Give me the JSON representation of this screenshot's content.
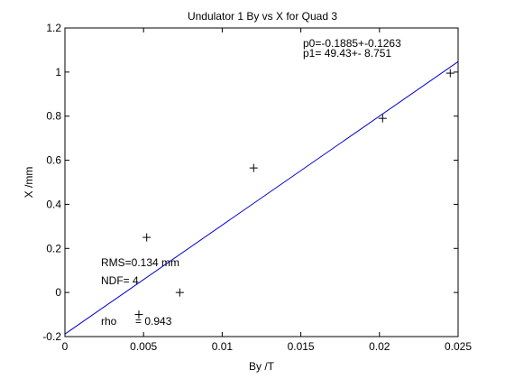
{
  "chart_data": {
    "type": "scatter",
    "title": "Undulator 1 By vs X for Quad 3",
    "xlabel": "By /T",
    "ylabel": "X /mm",
    "xlim": [
      0,
      0.025
    ],
    "ylim": [
      -0.2,
      1.2
    ],
    "xticks": [
      0,
      0.005,
      0.01,
      0.015,
      0.02,
      0.025
    ],
    "xtick_labels": [
      "0",
      "0.005",
      "0.01",
      "0.015",
      "0.02",
      "0.025"
    ],
    "yticks": [
      -0.2,
      0,
      0.2,
      0.4,
      0.6,
      0.8,
      1,
      1.2
    ],
    "ytick_labels": [
      "-0.2",
      "0",
      "0.2",
      "0.4",
      "0.6",
      "0.8",
      "1",
      "1.2"
    ],
    "grid": false,
    "marker": "+",
    "points": [
      {
        "x": 0.0047,
        "y": -0.1
      },
      {
        "x": 0.0052,
        "y": 0.25
      },
      {
        "x": 0.0073,
        "y": 0.0
      },
      {
        "x": 0.012,
        "y": 0.565
      },
      {
        "x": 0.0202,
        "y": 0.79
      },
      {
        "x": 0.0245,
        "y": 0.995
      }
    ],
    "fit_line": {
      "p0": -0.1885,
      "p1": 49.43,
      "color": "#0000cc"
    },
    "annotations": {
      "p0_text": "p0=-0.1885+-0.1263",
      "p1_text": "p1=  49.43+- 8.751",
      "rms_text": "RMS=0.134 mm",
      "ndf_text": "NDF=    4",
      "rho_label": "rho",
      "rho_value": "=  0.943"
    }
  }
}
